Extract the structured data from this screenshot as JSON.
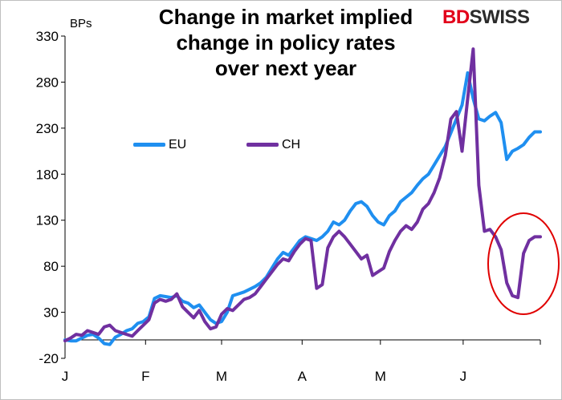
{
  "chart_data": {
    "type": "line",
    "title_lines": [
      "Change in market implied",
      "change in policy rates",
      "over next year"
    ],
    "ylabel": "BPs",
    "ylim": [
      -20,
      330
    ],
    "yticks": [
      -20,
      30,
      80,
      130,
      180,
      230,
      280,
      330
    ],
    "xticks": [
      "J",
      "F",
      "M",
      "A",
      "M",
      "J"
    ],
    "x_range_weeks": [
      0,
      26.5
    ],
    "legend": {
      "placement": "top-left"
    },
    "series": [
      {
        "name": "EU",
        "color": "#1f8ff0",
        "points": [
          [
            0,
            0
          ],
          [
            0.5,
            -1
          ],
          [
            1,
            -1
          ],
          [
            1.5,
            2
          ],
          [
            2,
            5
          ],
          [
            2.5,
            6
          ],
          [
            3,
            2
          ],
          [
            3.5,
            -4
          ],
          [
            4,
            -5
          ],
          [
            4.5,
            3
          ],
          [
            5,
            6
          ],
          [
            5.5,
            10
          ],
          [
            6,
            12
          ],
          [
            6.5,
            18
          ],
          [
            7,
            20
          ],
          [
            7.5,
            25
          ],
          [
            8,
            45
          ],
          [
            8.5,
            48
          ],
          [
            9,
            47
          ],
          [
            9.5,
            46
          ],
          [
            10,
            48
          ],
          [
            10.5,
            42
          ],
          [
            11,
            40
          ],
          [
            11.5,
            35
          ],
          [
            12,
            38
          ],
          [
            12.5,
            30
          ],
          [
            13,
            22
          ],
          [
            13.5,
            18
          ],
          [
            14,
            20
          ],
          [
            14.5,
            30
          ],
          [
            15,
            48
          ],
          [
            15.5,
            50
          ],
          [
            16,
            52
          ],
          [
            16.5,
            55
          ],
          [
            17,
            58
          ],
          [
            17.5,
            62
          ],
          [
            18,
            68
          ],
          [
            18.5,
            78
          ],
          [
            19,
            88
          ],
          [
            19.5,
            95
          ],
          [
            20,
            92
          ],
          [
            20.5,
            100
          ],
          [
            21,
            108
          ],
          [
            21.5,
            112
          ],
          [
            22,
            110
          ],
          [
            22.5,
            108
          ],
          [
            23,
            112
          ],
          [
            23.5,
            118
          ],
          [
            24,
            128
          ],
          [
            24.5,
            125
          ],
          [
            25,
            130
          ],
          [
            25.5,
            140
          ],
          [
            26,
            148
          ],
          [
            26.5,
            150
          ],
          [
            27,
            145
          ],
          [
            27.5,
            135
          ],
          [
            28,
            128
          ],
          [
            28.5,
            125
          ],
          [
            29,
            135
          ],
          [
            29.5,
            140
          ],
          [
            30,
            150
          ],
          [
            30.5,
            155
          ],
          [
            31,
            160
          ],
          [
            31.5,
            168
          ],
          [
            32,
            175
          ],
          [
            32.5,
            180
          ],
          [
            33,
            190
          ],
          [
            33.5,
            200
          ],
          [
            34,
            210
          ],
          [
            34.5,
            225
          ],
          [
            35,
            240
          ],
          [
            35.5,
            255
          ],
          [
            36,
            290
          ],
          [
            36.5,
            262
          ],
          [
            37,
            240
          ],
          [
            37.5,
            238
          ],
          [
            38,
            243
          ],
          [
            38.5,
            247
          ],
          [
            39,
            236
          ],
          [
            39.5,
            196
          ],
          [
            40,
            205
          ],
          [
            40.5,
            208
          ],
          [
            41,
            212
          ],
          [
            41.5,
            220
          ],
          [
            42,
            226
          ],
          [
            42.5,
            226
          ]
        ]
      },
      {
        "name": "CH",
        "color": "#7030a0",
        "points": [
          [
            0,
            -1
          ],
          [
            0.5,
            2
          ],
          [
            1,
            6
          ],
          [
            1.5,
            5
          ],
          [
            2,
            10
          ],
          [
            2.5,
            8
          ],
          [
            3,
            6
          ],
          [
            3.5,
            14
          ],
          [
            4,
            16
          ],
          [
            4.5,
            10
          ],
          [
            5,
            8
          ],
          [
            5.5,
            6
          ],
          [
            6,
            4
          ],
          [
            6.5,
            10
          ],
          [
            7,
            16
          ],
          [
            7.5,
            22
          ],
          [
            8,
            40
          ],
          [
            8.5,
            44
          ],
          [
            9,
            42
          ],
          [
            9.5,
            44
          ],
          [
            10,
            50
          ],
          [
            10.5,
            36
          ],
          [
            11,
            30
          ],
          [
            11.5,
            24
          ],
          [
            12,
            32
          ],
          [
            12.5,
            20
          ],
          [
            13,
            12
          ],
          [
            13.5,
            14
          ],
          [
            14,
            28
          ],
          [
            14.5,
            34
          ],
          [
            15,
            32
          ],
          [
            15.5,
            38
          ],
          [
            16,
            44
          ],
          [
            16.5,
            46
          ],
          [
            17,
            50
          ],
          [
            17.5,
            58
          ],
          [
            18,
            66
          ],
          [
            18.5,
            74
          ],
          [
            19,
            82
          ],
          [
            19.5,
            88
          ],
          [
            20,
            86
          ],
          [
            20.5,
            96
          ],
          [
            21,
            104
          ],
          [
            21.5,
            110
          ],
          [
            22,
            108
          ],
          [
            22.5,
            56
          ],
          [
            23,
            60
          ],
          [
            23.5,
            100
          ],
          [
            24,
            112
          ],
          [
            24.5,
            118
          ],
          [
            25,
            112
          ],
          [
            25.5,
            104
          ],
          [
            26,
            96
          ],
          [
            26.5,
            88
          ],
          [
            27,
            92
          ],
          [
            27.5,
            70
          ],
          [
            28,
            74
          ],
          [
            28.5,
            78
          ],
          [
            29,
            96
          ],
          [
            29.5,
            108
          ],
          [
            30,
            118
          ],
          [
            30.5,
            124
          ],
          [
            31,
            120
          ],
          [
            31.5,
            128
          ],
          [
            32,
            142
          ],
          [
            32.5,
            148
          ],
          [
            33,
            160
          ],
          [
            33.5,
            176
          ],
          [
            34,
            200
          ],
          [
            34.5,
            240
          ],
          [
            35,
            248
          ],
          [
            35.5,
            205
          ],
          [
            36,
            262
          ],
          [
            36.5,
            316
          ],
          [
            37,
            168
          ],
          [
            37.5,
            118
          ],
          [
            38,
            120
          ],
          [
            38.5,
            112
          ],
          [
            39,
            98
          ],
          [
            39.5,
            62
          ],
          [
            40,
            48
          ],
          [
            40.5,
            46
          ],
          [
            41,
            94
          ],
          [
            41.5,
            108
          ],
          [
            42,
            112
          ],
          [
            42.5,
            112
          ]
        ]
      }
    ]
  },
  "logo": {
    "part1": "BD",
    "part2": "SWISS"
  },
  "legend_labels": {
    "eu": "EU",
    "ch": "CH"
  }
}
